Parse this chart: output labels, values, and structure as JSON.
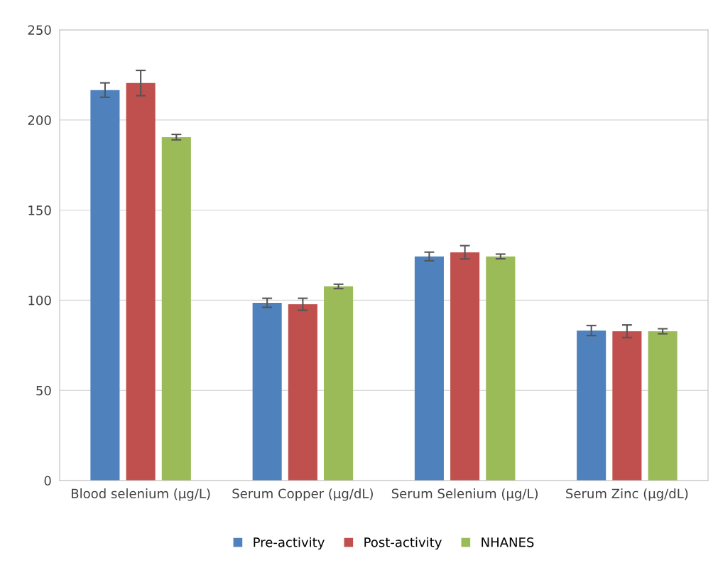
{
  "chart_data": {
    "type": "bar",
    "categories": [
      "Blood selenium (µg/L)",
      "Serum Copper (µg/dL)",
      "Serum Selenium (µg/L)",
      "Serum Zinc (µg/dL)"
    ],
    "series": [
      {
        "name": "Pre-activity",
        "color": "#4f81bd",
        "values": [
          216.6,
          98.6,
          124.3,
          83.2
        ],
        "errors": [
          4,
          2.5,
          2.4,
          2.8
        ]
      },
      {
        "name": "Post-activity",
        "color": "#c0504d",
        "values": [
          220.5,
          97.8,
          126.6,
          82.8
        ],
        "errors": [
          7,
          3.3,
          3.7,
          3.5
        ]
      },
      {
        "name": "NHANES",
        "color": "#9bbb59",
        "values": [
          190.5,
          107.7,
          124.3,
          82.8
        ],
        "errors": [
          1.5,
          1.2,
          1.3,
          1.4
        ]
      }
    ],
    "ylim": [
      0,
      250
    ],
    "yticks": [
      0,
      50,
      100,
      150,
      200,
      250
    ],
    "grid": "y",
    "legend": "bottom"
  }
}
